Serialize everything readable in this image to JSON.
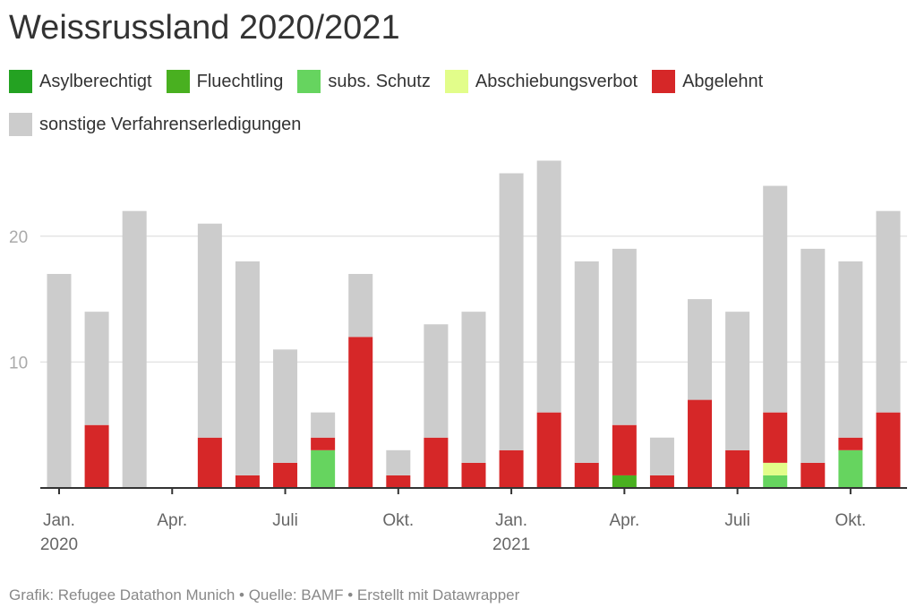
{
  "chart_data": {
    "type": "bar",
    "stacked": true,
    "title": "Weissrussland 2020/2021",
    "ylim": [
      0,
      26
    ],
    "yticks": [
      10,
      20
    ],
    "grid": true,
    "legend_position": "top-left",
    "categories": [
      "Jan 2020",
      "Feb 2020",
      "Mar 2020",
      "Apr 2020",
      "May 2020",
      "Jun 2020",
      "Jul 2020",
      "Aug 2020",
      "Sep 2020",
      "Oct 2020",
      "Nov 2020",
      "Dec 2020",
      "Jan 2021",
      "Feb 2021",
      "Mar 2021",
      "Apr 2021",
      "May 2021",
      "Jun 2021",
      "Jul 2021",
      "Aug 2021",
      "Sep 2021",
      "Oct 2021",
      "Nov 2021"
    ],
    "xticks": [
      {
        "index": 0,
        "label": "Jan.",
        "sub": "2020"
      },
      {
        "index": 3,
        "label": "Apr.",
        "sub": ""
      },
      {
        "index": 6,
        "label": "Juli",
        "sub": ""
      },
      {
        "index": 9,
        "label": "Okt.",
        "sub": ""
      },
      {
        "index": 12,
        "label": "Jan.",
        "sub": "2021"
      },
      {
        "index": 15,
        "label": "Apr.",
        "sub": ""
      },
      {
        "index": 18,
        "label": "Juli",
        "sub": ""
      },
      {
        "index": 21,
        "label": "Okt.",
        "sub": ""
      }
    ],
    "series": [
      {
        "name": "Asylberechtigt",
        "color": "#24a222",
        "values": [
          0,
          0,
          0,
          0,
          0,
          0,
          0,
          0,
          0,
          0,
          0,
          0,
          0,
          0,
          0,
          0,
          0,
          0,
          0,
          0,
          0,
          0,
          0
        ]
      },
      {
        "name": "Fluechtling",
        "color": "#49b020",
        "values": [
          0,
          0,
          0,
          0,
          0,
          0,
          0,
          0,
          0,
          0,
          0,
          0,
          0,
          0,
          0,
          1,
          0,
          0,
          0,
          0,
          0,
          0,
          0
        ]
      },
      {
        "name": "subs. Schutz",
        "color": "#66d45f",
        "values": [
          0,
          0,
          0,
          0,
          0,
          0,
          0,
          3,
          0,
          0,
          0,
          0,
          0,
          0,
          0,
          0,
          0,
          0,
          0,
          1,
          0,
          3,
          0
        ]
      },
      {
        "name": "Abschiebungsverbot",
        "color": "#e2fd8a",
        "values": [
          0,
          0,
          0,
          0,
          0,
          0,
          0,
          0,
          0,
          0,
          0,
          0,
          0,
          0,
          0,
          0,
          0,
          0,
          0,
          1,
          0,
          0,
          0
        ]
      },
      {
        "name": "Abgelehnt",
        "color": "#d62728",
        "values": [
          0,
          5,
          0,
          0,
          4,
          1,
          2,
          1,
          12,
          1,
          4,
          2,
          3,
          6,
          2,
          4,
          1,
          7,
          3,
          4,
          2,
          1,
          6
        ]
      },
      {
        "name": "sonstige Verfahrenserledigungen",
        "color": "#cccccc",
        "values": [
          17,
          9,
          22,
          0,
          17,
          17,
          9,
          2,
          5,
          2,
          9,
          12,
          22,
          20,
          16,
          14,
          3,
          8,
          11,
          18,
          17,
          14,
          16
        ]
      }
    ]
  },
  "footer": "Grafik: Refugee Datathon Munich • Quelle: BAMF • Erstellt mit Datawrapper"
}
